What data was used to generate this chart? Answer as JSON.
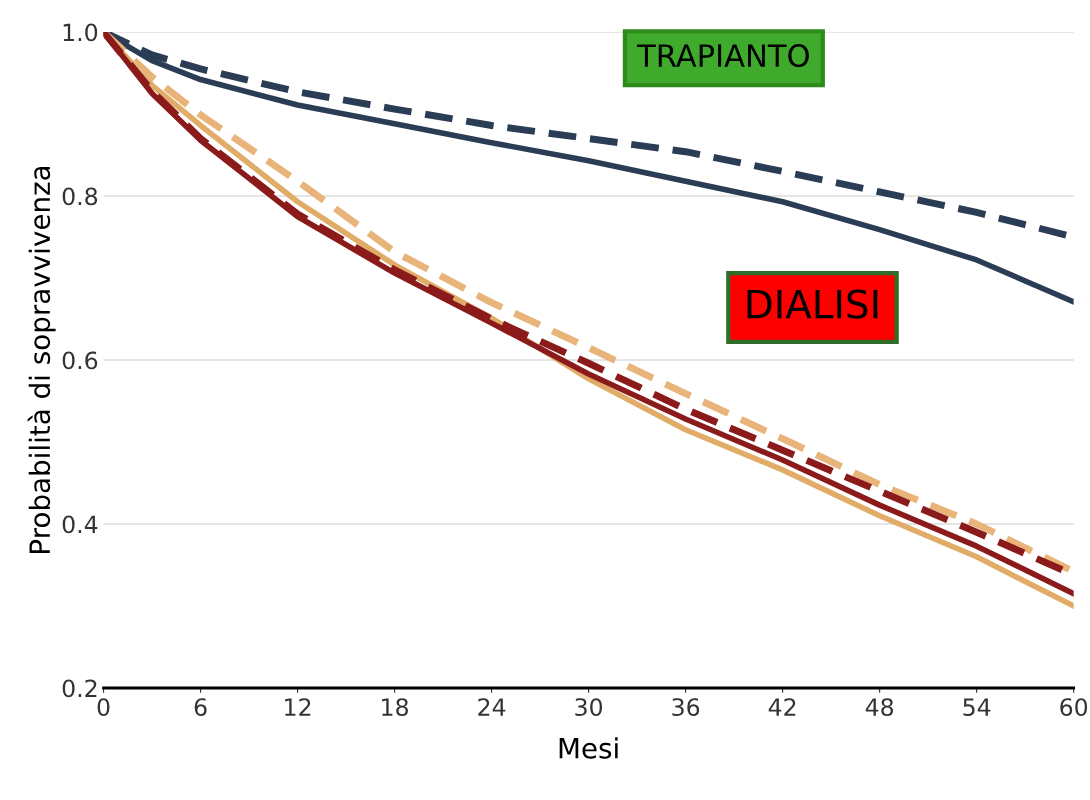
{
  "chart_data": {
    "type": "line",
    "xlabel": "Mesi",
    "ylabel": "Probabilità di sopravvivenza",
    "x": [
      0,
      3,
      6,
      12,
      18,
      24,
      30,
      36,
      42,
      48,
      54,
      60
    ],
    "series": [
      {
        "color": "#2b3d55",
        "line_style": "solid",
        "values": [
          1.0,
          0.965,
          0.942,
          0.911,
          0.888,
          0.865,
          0.843,
          0.818,
          0.793,
          0.759,
          0.722,
          0.671
        ]
      },
      {
        "color": "#2b3d55",
        "line_style": "dashed",
        "values": [
          1.0,
          0.972,
          0.955,
          0.927,
          0.906,
          0.886,
          0.87,
          0.854,
          0.83,
          0.805,
          0.78,
          0.75
        ]
      },
      {
        "color": "#e0ac68",
        "line_style": "solid",
        "values": [
          1.0,
          0.935,
          0.886,
          0.793,
          0.716,
          0.651,
          0.577,
          0.515,
          0.466,
          0.41,
          0.36,
          0.3
        ]
      },
      {
        "color": "#e8b47a",
        "line_style": "dashed",
        "values": [
          1.0,
          0.945,
          0.899,
          0.818,
          0.732,
          0.67,
          0.615,
          0.559,
          0.504,
          0.448,
          0.4,
          0.342
        ]
      },
      {
        "color": "#8b1a1a",
        "line_style": "solid",
        "values": [
          1.0,
          0.925,
          0.868,
          0.775,
          0.706,
          0.645,
          0.583,
          0.528,
          0.478,
          0.423,
          0.373,
          0.315
        ]
      },
      {
        "color": "#8b1a1a",
        "line_style": "dashed",
        "values": [
          1.0,
          0.928,
          0.87,
          0.778,
          0.71,
          0.65,
          0.596,
          0.54,
          0.49,
          0.44,
          0.39,
          0.338
        ]
      }
    ],
    "xlim": [
      0,
      60
    ],
    "xticks": [
      0,
      6,
      12,
      18,
      24,
      30,
      36,
      42,
      48,
      54,
      60
    ],
    "ylim": [
      0.2,
      1.0
    ],
    "yticks": [
      {
        "value": 0.2,
        "label": "0.2"
      },
      {
        "value": 0.4,
        "label": "0.4"
      },
      {
        "value": 0.6,
        "label": "0.6"
      },
      {
        "value": 0.8,
        "label": "0.8"
      },
      {
        "value": 1.0,
        "label": "1.0"
      }
    ],
    "grid": "y",
    "legend": false,
    "marker": "none",
    "annotations": [
      "TRAPIANTO",
      "DIALISI"
    ]
  }
}
